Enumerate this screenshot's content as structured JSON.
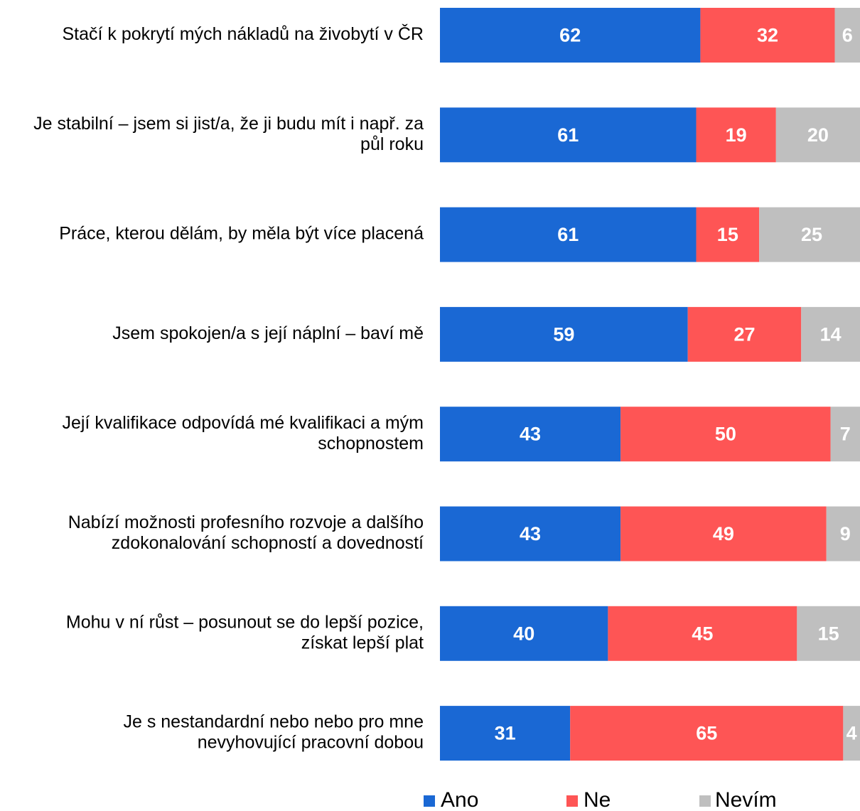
{
  "chart_data": {
    "type": "bar",
    "orientation": "horizontal",
    "stacked": true,
    "categories": [
      [
        "Stačí k pokrytí mých nákladů na živobytí v ČR"
      ],
      [
        "Je stabilní – jsem si jist/a, že ji budu mít i např. za",
        "půl roku"
      ],
      [
        "Práce, kterou dělám, by měla být více placená"
      ],
      [
        "Jsem spokojen/a s její náplní – baví mě"
      ],
      [
        "Její kvalifikace odpovídá mé kvalifikaci a mým",
        "schopnostem"
      ],
      [
        "Nabízí možnosti profesního rozvoje a dalšího",
        "zdokonalování schopností a dovedností"
      ],
      [
        "Mohu v ní růst – posunout se do lepší pozice,",
        "získat lepší plat"
      ],
      [
        "Je s nestandardní nebo nebo pro mne",
        "nevyhovující pracovní dobou"
      ]
    ],
    "series": [
      {
        "name": "Ano",
        "color": "#1a68d4",
        "values": [
          62,
          61,
          61,
          59,
          43,
          43,
          40,
          31
        ]
      },
      {
        "name": "Ne",
        "color": "#fe5555",
        "values": [
          32,
          19,
          15,
          27,
          50,
          49,
          45,
          65
        ]
      },
      {
        "name": "Nevím",
        "color": "#bfbfbf",
        "values": [
          6,
          20,
          25,
          14,
          7,
          9,
          15,
          4
        ]
      }
    ],
    "xlim": [
      0,
      100
    ],
    "legend": "bottom",
    "grid": false
  }
}
